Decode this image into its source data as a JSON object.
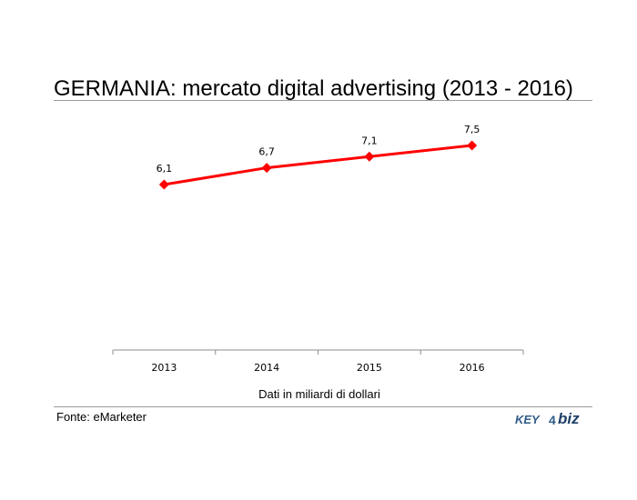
{
  "footer": {
    "source": "Fonte: eMarketer",
    "logo_key": "KEY",
    "logo_number": "4",
    "logo_biz": "biz"
  },
  "chart_data": {
    "type": "line",
    "title": "GERMANIA: mercato digital advertising (2013 - 2016)",
    "xlabel": "Dati in miliardi di dollari",
    "ylabel": "",
    "categories": [
      "2013",
      "2014",
      "2015",
      "2016"
    ],
    "series": [
      {
        "values": [
          6.1,
          6.7,
          7.1,
          7.5
        ],
        "labels": [
          "6,1",
          "6,7",
          "7,1",
          "7,5"
        ],
        "color": "#ff0000"
      }
    ],
    "grid": false,
    "legend": "none",
    "marker": "diamond"
  }
}
